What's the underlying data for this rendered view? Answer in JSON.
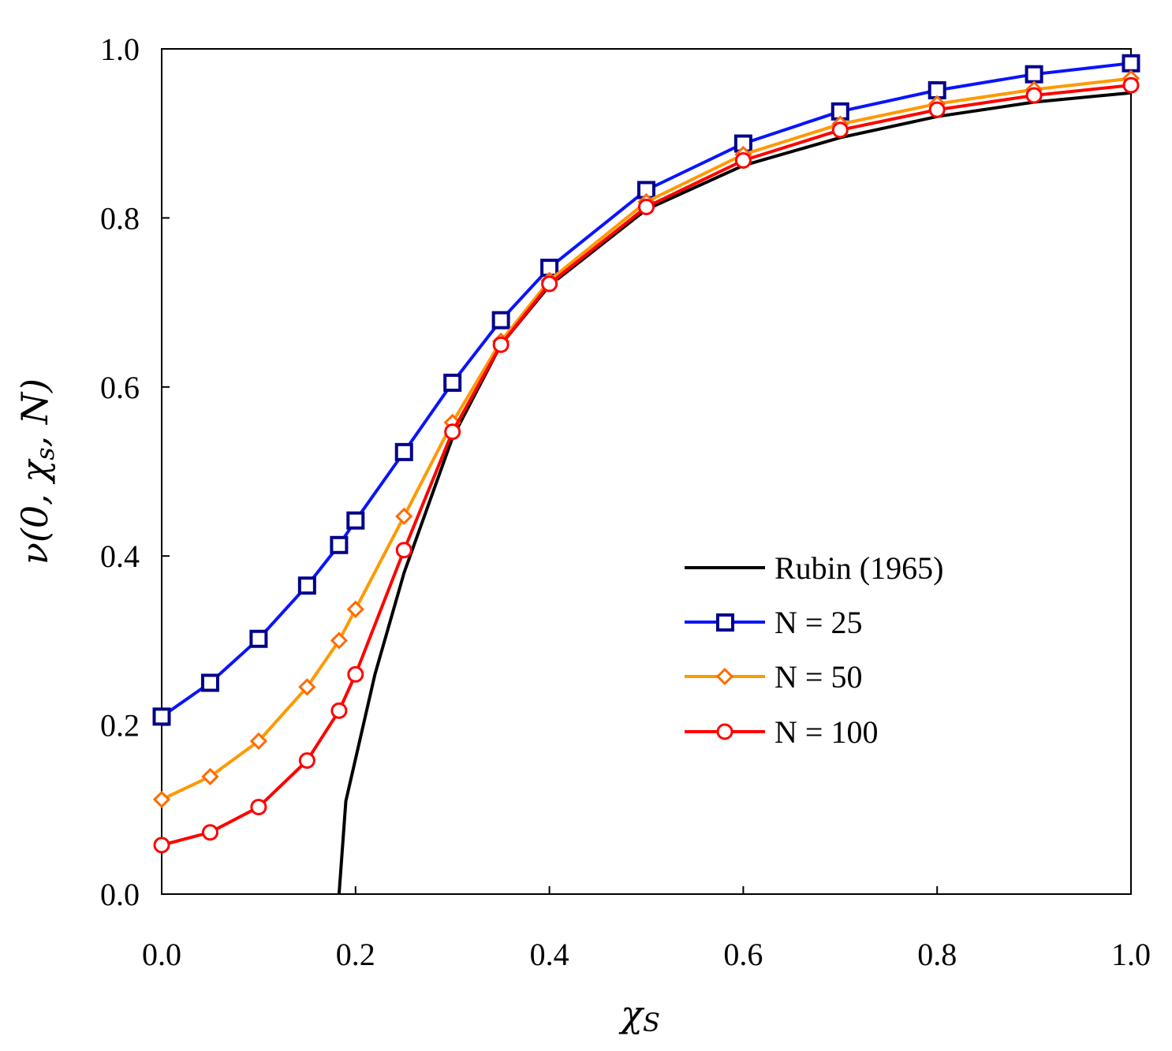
{
  "chart_data": {
    "type": "line",
    "xlabel": "χ",
    "xlabel_sub": "S",
    "ylabel": "ν(0, χ",
    "ylabel_sub": "s",
    "ylabel_tail": ", N)",
    "xlim": [
      0,
      1
    ],
    "ylim": [
      0,
      1
    ],
    "xticks": [
      "0.0",
      "0.2",
      "0.4",
      "0.6",
      "0.8",
      "1.0"
    ],
    "yticks": [
      "0.0",
      "0.2",
      "0.4",
      "0.6",
      "0.8",
      "1.0"
    ],
    "grid": false,
    "legend_position": "center-right",
    "series": [
      {
        "name": "Rubin (1965)",
        "color": "#000000",
        "marker": "none",
        "x": [
          0.183,
          0.19,
          0.2,
          0.22,
          0.25,
          0.3,
          0.35,
          0.4,
          0.5,
          0.6,
          0.7,
          0.8,
          0.9,
          1.0
        ],
        "y": [
          0.0,
          0.11,
          0.16,
          0.26,
          0.38,
          0.54,
          0.65,
          0.72,
          0.81,
          0.862,
          0.895,
          0.92,
          0.937,
          0.948
        ]
      },
      {
        "name": "N = 25",
        "color": "#0a14ff",
        "marker": "square",
        "marker_color": "#00008b",
        "x": [
          0.0,
          0.05,
          0.1,
          0.15,
          0.183,
          0.2,
          0.25,
          0.3,
          0.35,
          0.4,
          0.5,
          0.6,
          0.7,
          0.8,
          0.9,
          1.0
        ],
        "y": [
          0.21,
          0.25,
          0.302,
          0.365,
          0.413,
          0.442,
          0.523,
          0.605,
          0.679,
          0.741,
          0.833,
          0.888,
          0.926,
          0.951,
          0.97,
          0.983
        ]
      },
      {
        "name": "N = 50",
        "color": "#ff9900",
        "marker": "diamond",
        "marker_color": "#ff6a00",
        "x": [
          0.0,
          0.05,
          0.1,
          0.15,
          0.183,
          0.2,
          0.25,
          0.3,
          0.35,
          0.4,
          0.5,
          0.6,
          0.7,
          0.8,
          0.9,
          1.0
        ],
        "y": [
          0.112,
          0.139,
          0.181,
          0.245,
          0.3,
          0.337,
          0.447,
          0.558,
          0.654,
          0.726,
          0.819,
          0.875,
          0.911,
          0.935,
          0.952,
          0.965
        ]
      },
      {
        "name": "N = 100",
        "color": "#ff0000",
        "marker": "circle",
        "marker_color": "#ff0000",
        "x": [
          0.0,
          0.05,
          0.1,
          0.15,
          0.183,
          0.2,
          0.25,
          0.3,
          0.35,
          0.4,
          0.5,
          0.6,
          0.7,
          0.8,
          0.9,
          1.0
        ],
        "y": [
          0.058,
          0.073,
          0.103,
          0.158,
          0.217,
          0.26,
          0.407,
          0.547,
          0.65,
          0.722,
          0.813,
          0.868,
          0.904,
          0.928,
          0.945,
          0.957
        ]
      }
    ]
  }
}
